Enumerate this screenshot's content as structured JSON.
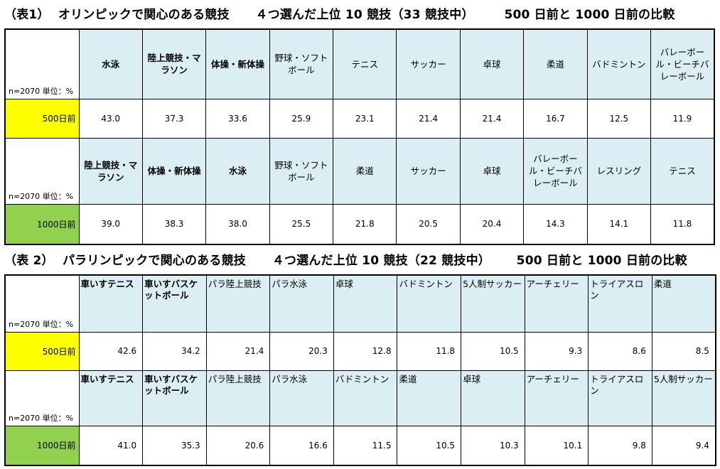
{
  "table1": {
    "title": "（表1）  オリンピックで関心のある競技      ４つ選んだ上位 10 競技（33 競技中）       500 日前と 1000 日前の比較",
    "corner": "n=2070  単位：%",
    "rows": [
      {
        "label": "500日前",
        "headers": [
          "水泳",
          "陸上競技・マラソン",
          "体操・新体操",
          "野球・ソフトボール",
          "テニス",
          "サッカー",
          "卓球",
          "柔道",
          "バドミントン",
          "バレーボール・ビーチバレーボール"
        ],
        "values": [
          "43.0",
          "37.3",
          "33.6",
          "25.9",
          "23.1",
          "21.4",
          "21.4",
          "16.7",
          "12.5",
          "11.9"
        ]
      },
      {
        "label": "1000日前",
        "headers": [
          "陸上競技・マラソン",
          "体操・新体操",
          "水泳",
          "野球・ソフトボール",
          "柔道",
          "サッカー",
          "卓球",
          "バレーボール・ビーチバレーボール",
          "レスリング",
          "テニス"
        ],
        "values": [
          "39.0",
          "38.3",
          "38.0",
          "25.5",
          "21.8",
          "20.5",
          "20.4",
          "14.3",
          "14.1",
          "11.8"
        ]
      }
    ]
  },
  "table2": {
    "title": "（表 2）  パラリンピックで関心のある競技      ４つ選んだ上位 10 競技（22 競技中）      500 日前と 1000 日前の比較",
    "corner": "n=2070  単位：%",
    "rows": [
      {
        "label": "500日前",
        "headers": [
          "車いすテニス",
          "車いすバスケットボール",
          "パラ陸上競技",
          "パラ水泳",
          "卓球",
          "バドミントン",
          "5人制サッカー",
          "アーチェリー",
          "トライアスロン",
          "柔道"
        ],
        "values": [
          "42.6",
          "34.2",
          "21.4",
          "20.3",
          "12.8",
          "11.8",
          "10.5",
          "9.3",
          "8.6",
          "8.5"
        ]
      },
      {
        "label": "1000日前",
        "headers": [
          "車いすテニス",
          "車いすバスケットボール",
          "パラ陸上競技",
          "パラ水泳",
          "バドミントン",
          "柔道",
          "卓球",
          "アーチェリー",
          "トライアスロン",
          "5人制サッカー"
        ],
        "values": [
          "41.0",
          "35.3",
          "20.6",
          "16.6",
          "11.5",
          "10.5",
          "10.3",
          "10.1",
          "9.8",
          "9.4"
        ]
      }
    ]
  }
}
